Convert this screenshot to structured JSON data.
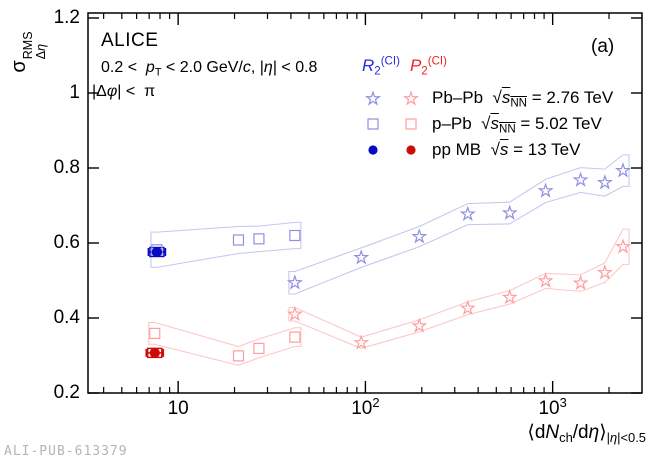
{
  "figure": {
    "experiment": "ALICE",
    "panel_label": "(a)",
    "watermark": "ALI-PUB-613379",
    "cuts_line1": "0.2 <  *p*_{T} < 2.0 GeV/*c*, |*η*| < 0.8",
    "cuts_line2": "|Δ*φ*| <  π"
  },
  "legend": {
    "header_r2": "*R*_{2}^{(CI)}",
    "header_p2": "*P*_{2}^{(CI)}",
    "rows": [
      {
        "marker": "star",
        "label": "Pb–Pb  √~*s*_{NN}~ = 2.76 TeV"
      },
      {
        "marker": "square",
        "label": "p–Pb  √~*s*_{NN}~ = 5.02 TeV"
      },
      {
        "marker": "circle",
        "label": "pp MB  √~*s*~ = 13 TeV"
      }
    ]
  },
  "colors": {
    "blue_light": "#8f8fe3",
    "blue_band": "#c6c6f2",
    "blue_dark": "#0909c4",
    "red_light": "#ff9d9d",
    "red_band": "#ffc6c6",
    "red_dark": "#cc0b0b",
    "legend_r2": "#2a2ae0",
    "legend_p2": "#ee2222",
    "frame": "#000000",
    "watermark": "#b5b5b5"
  },
  "chart_data": {
    "type": "scatter",
    "x_scale": "log",
    "grid": false,
    "xlim": [
      3.3,
      3000
    ],
    "ylim": [
      0.2,
      1.2133
    ],
    "xlabel": "⟨d*N*_{ch}/d*η*⟩_{|*η*|<0.5}",
    "ylabel_base": "σ",
    "ylabel_sup": "RMS",
    "ylabel_sub": "Δ*η*",
    "x_ticks": [
      {
        "value": 10,
        "label": "10"
      },
      {
        "value": 100,
        "label": "10^{2}"
      },
      {
        "value": 1000,
        "label": "10^{3}"
      }
    ],
    "y_ticks": [
      {
        "value": 0.2,
        "label": "0.2"
      },
      {
        "value": 0.4,
        "label": "0.4"
      },
      {
        "value": 0.6,
        "label": "0.6"
      },
      {
        "value": 0.8,
        "label": "0.8"
      },
      {
        "value": 1.0,
        "label": "1"
      },
      {
        "value": 1.2,
        "label": "1.2"
      }
    ],
    "series": [
      {
        "id": "r2-pbpb",
        "observable": "R2(CI)",
        "system": "Pb–Pb √sNN = 2.76 TeV",
        "marker": "star",
        "color_key": "blue_light",
        "band": true,
        "band_color_key": "blue_band",
        "x": [
          42,
          95,
          194,
          352,
          590,
          917,
          1410,
          1900,
          2376
        ],
        "y": [
          0.494,
          0.561,
          0.617,
          0.677,
          0.68,
          0.739,
          0.768,
          0.761,
          0.793
        ],
        "syst": [
          0.03,
          0.026,
          0.027,
          0.028,
          0.029,
          0.031,
          0.033,
          0.036,
          0.042
        ]
      },
      {
        "id": "r2-ppb",
        "observable": "R2(CI)",
        "system": "p–Pb √sNN = 5.02 TeV",
        "marker": "square",
        "color_key": "blue_light",
        "band": true,
        "band_color_key": "blue_band",
        "x": [
          7.7,
          21,
          27,
          42
        ],
        "y": [
          0.582,
          0.608,
          0.611,
          0.62
        ],
        "syst": [
          0.047,
          0.036,
          0.034,
          0.035
        ]
      },
      {
        "id": "r2-pp",
        "observable": "R2(CI)",
        "system": "pp MB √s = 13 TeV",
        "marker": "circle",
        "color_key": "blue_dark",
        "band": false,
        "x": [
          7.7
        ],
        "y": [
          0.576
        ],
        "syst": [
          0.012
        ]
      },
      {
        "id": "p2-pbpb",
        "observable": "P2(CI)",
        "system": "Pb–Pb √sNN = 2.76 TeV",
        "marker": "star",
        "color_key": "red_light",
        "band": true,
        "band_color_key": "red_band",
        "x": [
          42,
          95,
          194,
          352,
          590,
          917,
          1410,
          1900,
          2376
        ],
        "y": [
          0.41,
          0.334,
          0.379,
          0.426,
          0.455,
          0.499,
          0.493,
          0.521,
          0.59
        ],
        "syst": [
          0.018,
          0.015,
          0.016,
          0.017,
          0.018,
          0.02,
          0.022,
          0.026,
          0.047
        ]
      },
      {
        "id": "p2-ppb",
        "observable": "P2(CI)",
        "system": "p–Pb √sNN = 5.02 TeV",
        "marker": "square",
        "color_key": "red_light",
        "band": true,
        "band_color_key": "red_band",
        "x": [
          7.5,
          21,
          27,
          42
        ],
        "y": [
          0.359,
          0.299,
          0.319,
          0.349
        ],
        "syst": [
          0.029,
          0.025,
          0.025,
          0.025
        ]
      },
      {
        "id": "p2-pp",
        "observable": "P2(CI)",
        "system": "pp MB √s = 13 TeV",
        "marker": "circle",
        "color_key": "red_dark",
        "band": false,
        "x": [
          7.5
        ],
        "y": [
          0.307
        ],
        "syst": [
          0.012
        ]
      }
    ]
  }
}
